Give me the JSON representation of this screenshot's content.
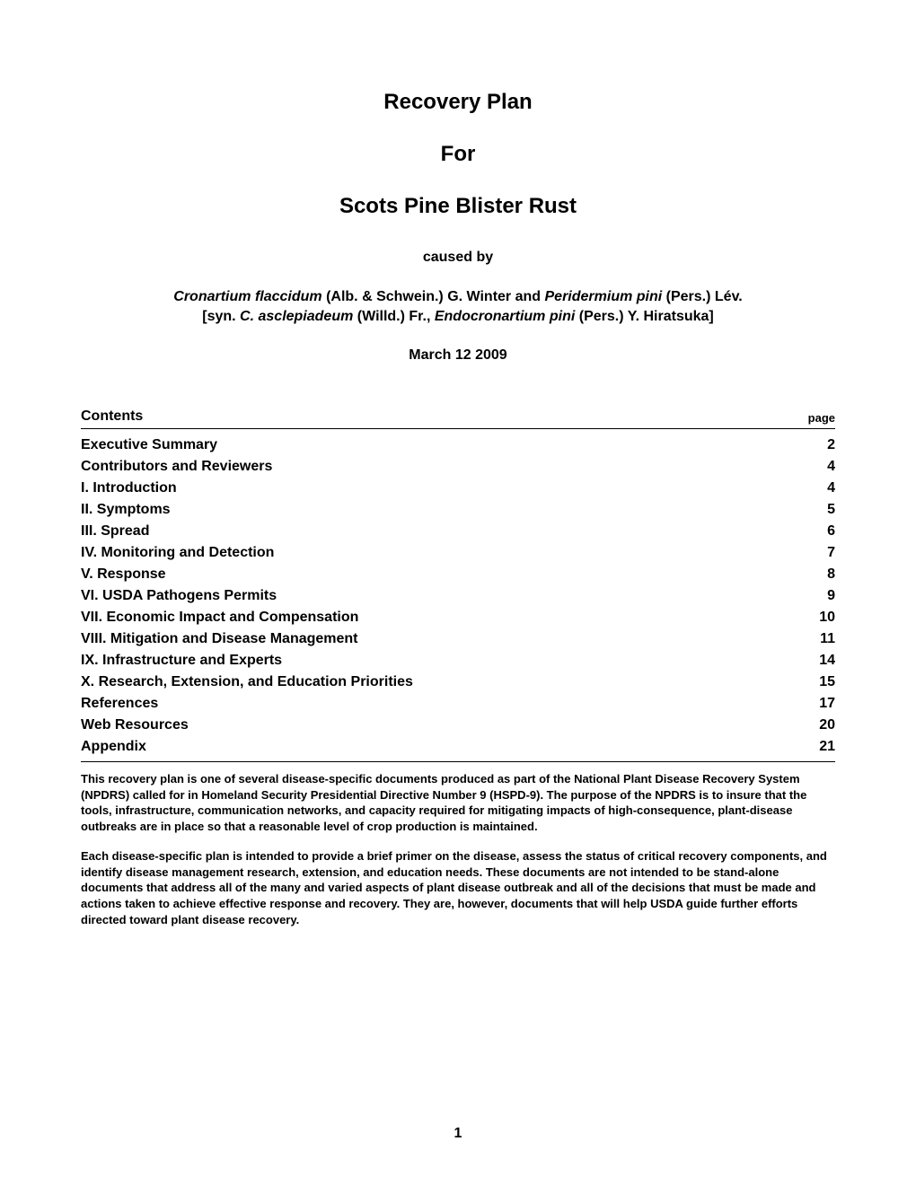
{
  "title": {
    "line1": "Recovery Plan",
    "line2": "For",
    "line3": "Scots Pine Blister Rust"
  },
  "caused_by_label": "caused by",
  "species": {
    "s1_italic1": "Cronartium flaccidum",
    "s1_plain1": " (Alb. & Schwein.) G. Winter and ",
    "s1_italic2": "Peridermium pini",
    "s1_plain2": " (Pers.) Lév.",
    "s2_plain1": "[syn. ",
    "s2_italic1": "C. asclepiadeum",
    "s2_plain2": " (Willd.) Fr., ",
    "s2_italic2": "Endocronartium pini",
    "s2_plain3": " (Pers.) Y. Hiratsuka]"
  },
  "date": "March 12 2009",
  "contents_label": "Contents",
  "page_label": "page",
  "toc": [
    {
      "label": "Executive Summary",
      "page": "2"
    },
    {
      "label": "Contributors and Reviewers",
      "page": "4"
    },
    {
      "label": "I. Introduction",
      "page": "4"
    },
    {
      "label": "II. Symptoms",
      "page": "5"
    },
    {
      "label": "III. Spread",
      "page": "6"
    },
    {
      "label": "IV. Monitoring and Detection",
      "page": "7"
    },
    {
      "label": "V. Response",
      "page": "8"
    },
    {
      "label": "VI. USDA Pathogens Permits",
      "page": "9"
    },
    {
      "label": "VII. Economic Impact and Compensation",
      "page": "10"
    },
    {
      "label": "VIII. Mitigation and Disease Management",
      "page": "11"
    },
    {
      "label": "IX. Infrastructure and Experts",
      "page": "14"
    },
    {
      "label": "X. Research, Extension, and Education Priorities",
      "page": "15"
    },
    {
      "label": "References",
      "page": "17"
    },
    {
      "label": "Web Resources",
      "page": "20"
    },
    {
      "label": "Appendix",
      "page": "21"
    }
  ],
  "para1": "This recovery plan is one of several disease-specific documents produced as part of the National Plant Disease Recovery System (NPDRS) called for in Homeland Security Presidential Directive Number 9 (HSPD-9). The purpose of the NPDRS is to insure that the tools, infrastructure, communication networks, and capacity required for mitigating impacts of high-consequence, plant-disease outbreaks are in place so that a reasonable level of crop production is maintained.",
  "para2": "Each disease-specific plan is intended to provide a brief primer on the disease, assess the status of critical recovery components, and identify disease management research, extension, and education needs. These documents are not intended to be stand-alone documents that address all of the many and varied aspects of plant disease outbreak and all of the decisions that must be made and actions taken to achieve effective response and recovery. They are, however, documents that will help USDA guide further efforts directed toward plant disease recovery.",
  "page_number": "1",
  "colors": {
    "text": "#000000",
    "background": "#ffffff",
    "rule": "#000000"
  },
  "typography": {
    "title_fontsize": 24,
    "body_fontsize": 16,
    "small_fontsize": 13,
    "font_family": "Arial",
    "font_weight": "bold"
  }
}
